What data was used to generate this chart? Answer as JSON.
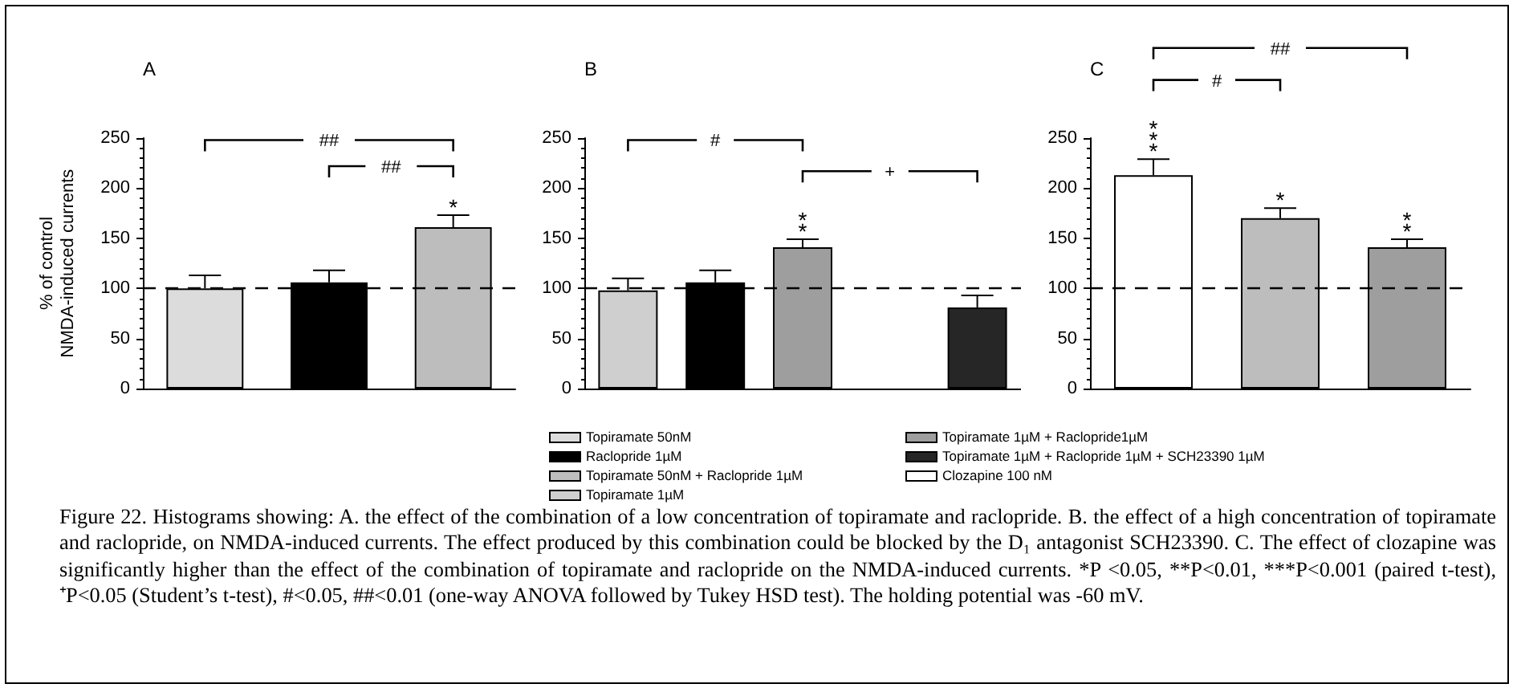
{
  "chart_data": [
    {
      "type": "bar",
      "title": "A",
      "ylabel": "% of control\nNMDA-induced currents",
      "categories": [
        null,
        null,
        null
      ],
      "ylim": [
        0,
        250
      ],
      "yticks": [
        0,
        50,
        100,
        150,
        200,
        250
      ],
      "grid": false,
      "tick_labels": "y",
      "legend": "bottom",
      "series": [
        {
          "name": "Topiramate 50nM",
          "color": "#dcdcdc",
          "values": [
            100,
            null,
            null
          ],
          "errors": [
            13,
            null,
            null
          ]
        },
        {
          "name": "Raclopride 1µM",
          "color": "#000000",
          "values": [
            null,
            106,
            null
          ],
          "errors": [
            null,
            12,
            null
          ]
        },
        {
          "name": "Topiramate 50nM + Raclopride 1µM",
          "color": "#bdbdbd",
          "values": [
            null,
            null,
            161
          ],
          "errors": [
            null,
            null,
            12
          ],
          "value_labels": [
            null,
            null,
            "*"
          ]
        }
      ],
      "ref_lines": [
        {
          "axis": "y",
          "value": 100,
          "line_style": "dashed",
          "color": "#000000"
        }
      ],
      "annotations": [
        "##",
        "##",
        "Figure 22. Histograms showing: A. the effect of the combination of a low concentration of topiramate and raclopride. B. the effect of a high concentration of topiramate and raclopride, on NMDA-induced currents. The effect produced by this combination could be blocked by the D₁ antagonist SCH23390. C. The effect of clozapine was significantly higher than the effect of the combination of topiramate and raclopride on the NMDA-induced currents. *P <0.05, **P<0.01, ***P<0.001 (paired t-test), ⁺P<0.05 (Student’s t-test), #<0.05, ##<0.01 (one-way ANOVA followed by Tukey HSD test). The holding potential was -60 mV."
      ]
    },
    {
      "type": "bar",
      "title": "B",
      "categories": [
        null,
        null,
        null,
        null,
        null
      ],
      "ylim": [
        0,
        250
      ],
      "yticks": [
        0,
        50,
        100,
        150,
        200,
        250
      ],
      "grid": false,
      "tick_labels": "y",
      "legend": "bottom",
      "series": [
        {
          "name": "Topiramate 1µM",
          "color": "#cfcfcf",
          "values": [
            98,
            null,
            null,
            null,
            null
          ],
          "errors": [
            12,
            null,
            null,
            null,
            null
          ]
        },
        {
          "name": "Raclopride 1µM",
          "color": "#000000",
          "values": [
            null,
            106,
            null,
            null,
            null
          ],
          "errors": [
            null,
            12,
            null,
            null,
            null
          ]
        },
        {
          "name": "Topiramate 1µM + Raclopride1µM",
          "color": "#9e9e9e",
          "values": [
            null,
            null,
            141,
            null,
            null
          ],
          "errors": [
            null,
            null,
            8,
            null,
            null
          ],
          "value_labels": [
            null,
            null,
            "**",
            null,
            null
          ]
        },
        {
          "name": "Topiramate 1µM + Raclopride 1µM + SCH23390 1µM",
          "color": "#262626",
          "values": [
            null,
            null,
            null,
            null,
            81
          ],
          "errors": [
            null,
            null,
            null,
            null,
            12
          ]
        }
      ],
      "ref_lines": [
        {
          "axis": "y",
          "value": 100,
          "line_style": "dashed",
          "color": "#000000"
        }
      ],
      "annotations": [
        "#",
        "+"
      ]
    },
    {
      "type": "bar",
      "title": "C",
      "categories": [
        null,
        null,
        null
      ],
      "ylim": [
        0,
        250
      ],
      "yticks": [
        0,
        50,
        100,
        150,
        200,
        250
      ],
      "grid": false,
      "tick_labels": "y",
      "series": [
        {
          "name": "Clozapine 100 nM",
          "color": "#ffffff",
          "values": [
            213,
            null,
            null
          ],
          "errors": [
            16,
            null,
            null
          ],
          "value_labels": [
            "***",
            null,
            null
          ]
        },
        {
          "name": "Topiramate 50nM + Raclopride 1µM",
          "color": "#bdbdbd",
          "values": [
            null,
            170,
            null
          ],
          "errors": [
            null,
            10,
            null
          ],
          "value_labels": [
            null,
            "*",
            null
          ]
        },
        {
          "name": "Topiramate 1µM + Raclopride1µM",
          "color": "#9e9e9e",
          "values": [
            null,
            null,
            141
          ],
          "errors": [
            null,
            null,
            8
          ],
          "value_labels": [
            null,
            null,
            "**"
          ]
        }
      ],
      "ref_lines": [
        {
          "axis": "y",
          "value": 100,
          "line_style": "dashed",
          "color": "#000000"
        }
      ],
      "annotations": [
        "##",
        "#"
      ],
      "legend": "bottom"
    }
  ]
}
